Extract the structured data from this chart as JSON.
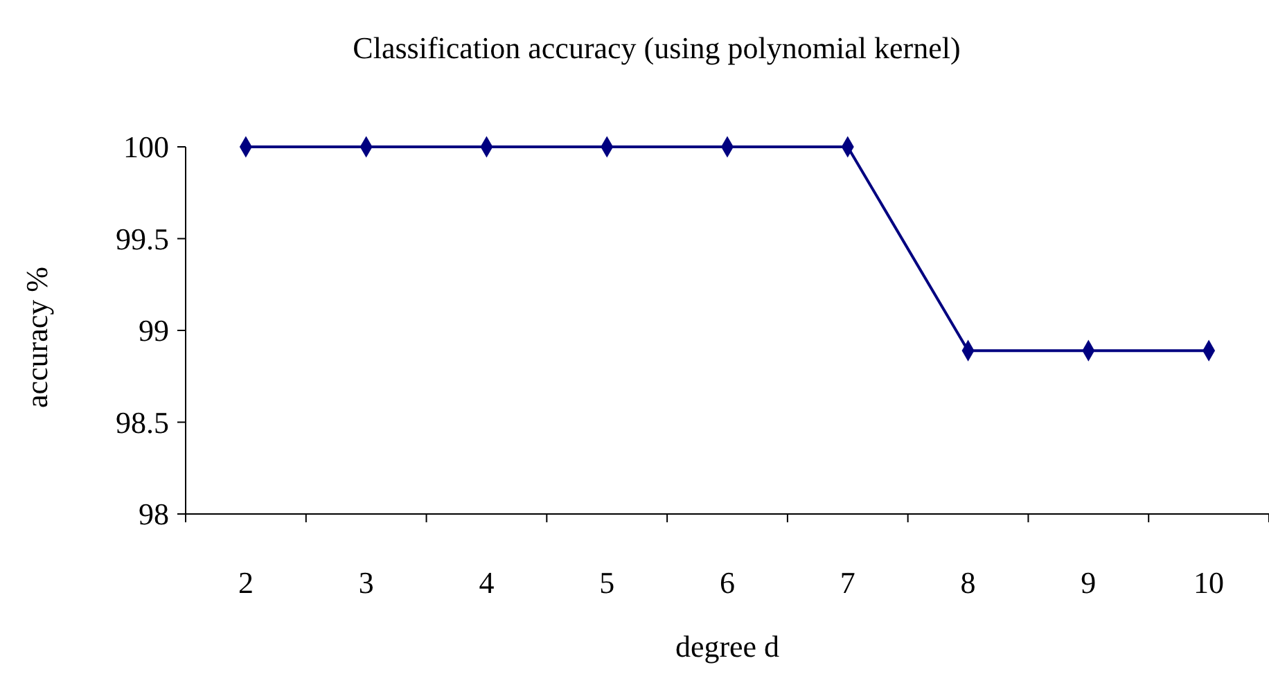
{
  "chart_data": {
    "type": "line",
    "title": "Classification accuracy (using polynomial kernel)",
    "xlabel": "degree d",
    "ylabel": "accuracy %",
    "categories": [
      "2",
      "3",
      "4",
      "5",
      "6",
      "7",
      "8",
      "9",
      "10"
    ],
    "series": [
      {
        "color": "#000080",
        "values": [
          100,
          100,
          100,
          100,
          100,
          100,
          98.89,
          98.89,
          98.89
        ]
      }
    ],
    "ylim": [
      98,
      100
    ],
    "yticks": [
      98,
      98.5,
      99,
      99.5,
      100
    ],
    "grid": false,
    "marker": "diamond",
    "line_style": "solid"
  }
}
